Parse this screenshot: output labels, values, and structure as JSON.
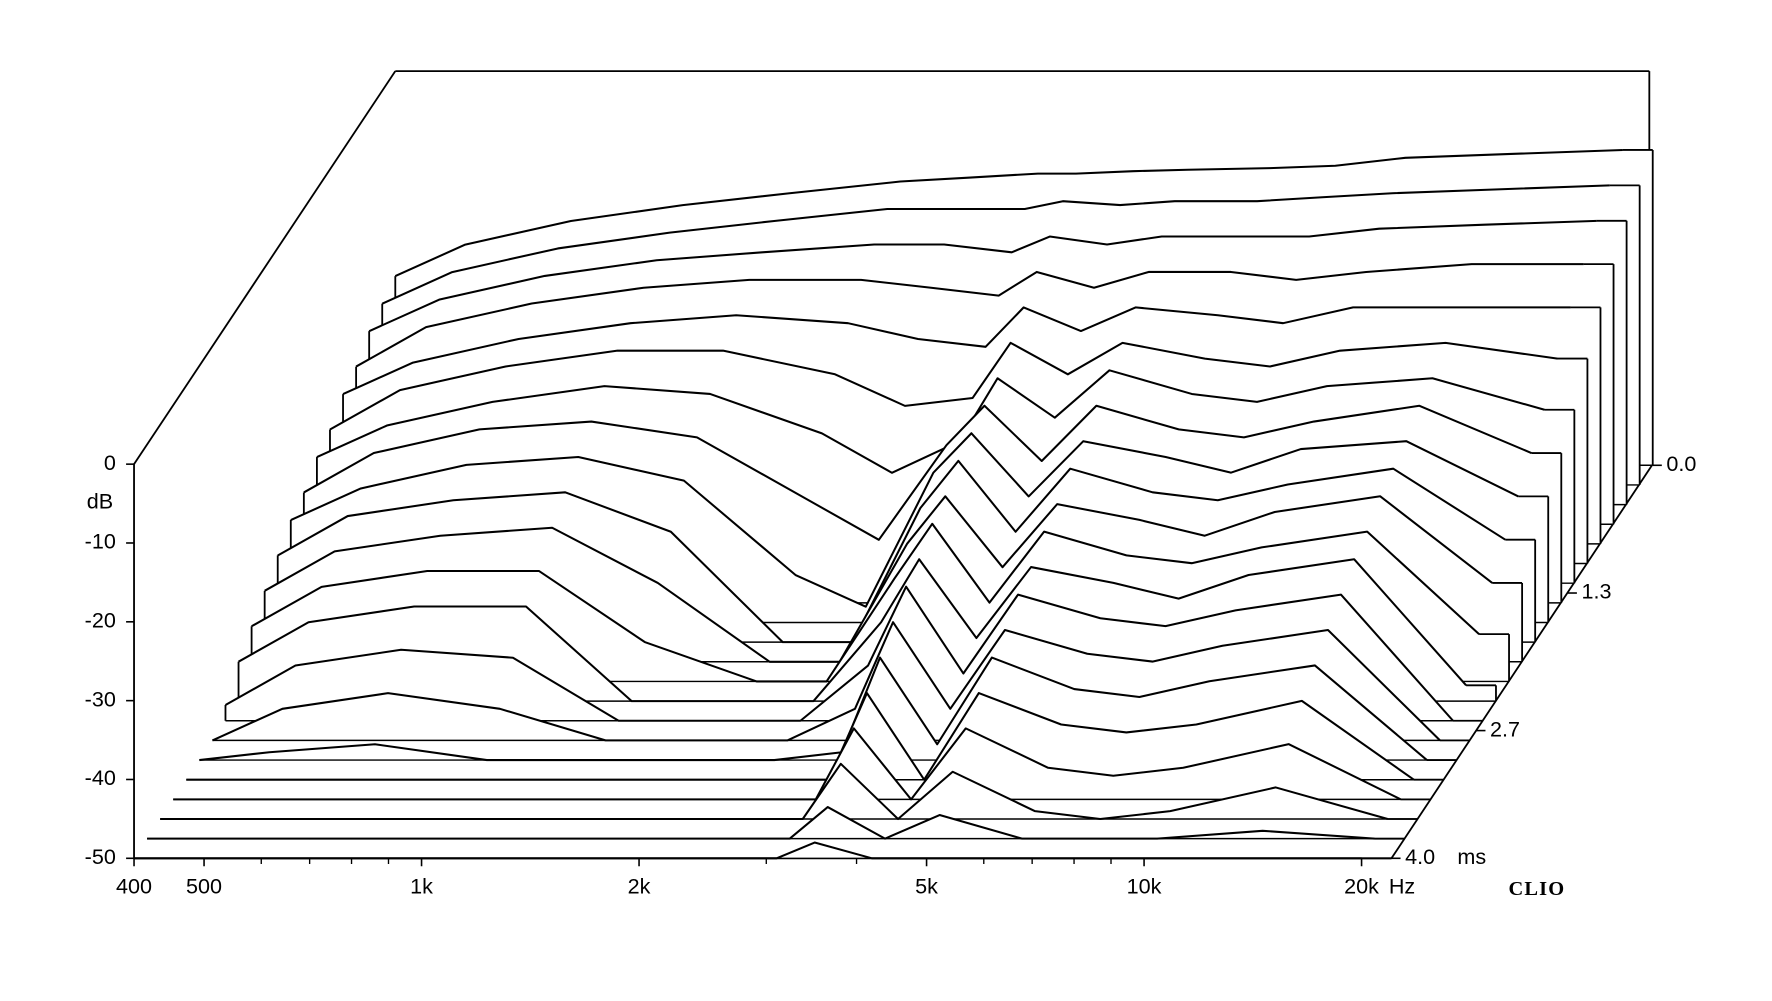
{
  "chart_data": {
    "type": "waterfall",
    "color": "#000000",
    "x": [
      400,
      500,
      700,
      1000,
      1400,
      2000,
      2500,
      3100,
      3500,
      4200,
      5000,
      6500,
      8000,
      10000,
      14000,
      20000
    ],
    "xlim": [
      400,
      22000
    ],
    "xticks": [
      400,
      500,
      {
        "value": 1000,
        "label": "1k"
      },
      {
        "value": 2000,
        "label": "2k"
      },
      {
        "value": 5000,
        "label": "5k"
      },
      {
        "value": 10000,
        "label": "10k"
      },
      {
        "value": 20000,
        "label": "20k"
      }
    ],
    "xminorticks": [
      600,
      700,
      800,
      900,
      3000,
      4000,
      6000,
      7000,
      8000,
      9000
    ],
    "xlabel": "Hz",
    "ylim": [
      -50,
      0
    ],
    "yticks": [
      0,
      -10,
      -20,
      -30,
      -40,
      -50
    ],
    "ylabel": "dB",
    "z": [
      0,
      0.2,
      0.4,
      0.6,
      0.8,
      1.0,
      1.2,
      1.4,
      1.6,
      1.8,
      2.0,
      2.2,
      2.4,
      2.6,
      2.8,
      3.0,
      3.2,
      3.4,
      3.6,
      3.8,
      4.0
    ],
    "zlim": [
      0,
      4
    ],
    "zticks": [
      {
        "value": 0,
        "label": "0.0"
      },
      1.3,
      2.7,
      {
        "value": 4,
        "label": "4.0"
      }
    ],
    "zlabel": "ms",
    "watermark": "CLIO",
    "series": [
      {
        "values": [
          -26,
          -22,
          -19,
          -17,
          -15.5,
          -14,
          -13.5,
          -13,
          -13,
          -12.7,
          -12.5,
          -12.3,
          -12,
          -11,
          -10.5,
          -10
        ]
      },
      {
        "values": [
          -27,
          -23,
          -20,
          -18,
          -16.5,
          -15,
          -15,
          -15,
          -14,
          -14.5,
          -14,
          -14,
          -13.5,
          -13,
          -12.5,
          -12
        ]
      },
      {
        "values": [
          -28,
          -24,
          -21,
          -19,
          -18,
          -17,
          -17,
          -18,
          -16,
          -17,
          -16,
          -16,
          -16,
          -15,
          -14.5,
          -14
        ]
      },
      {
        "values": [
          -30,
          -25,
          -22,
          -20,
          -19,
          -19,
          -20,
          -21,
          -18,
          -20,
          -18,
          -18,
          -19,
          -18,
          -17,
          -17
        ]
      },
      {
        "values": [
          -31,
          -27,
          -24,
          -22,
          -21,
          -22,
          -24,
          -25,
          -20,
          -23,
          -20,
          -21,
          -22,
          -20,
          -20,
          -20
        ]
      },
      {
        "values": [
          -33,
          -28,
          -25,
          -23,
          -23,
          -26,
          -30,
          -29,
          -22,
          -26,
          -22,
          -24,
          -25,
          -23,
          -22,
          -24
        ]
      },
      {
        "values": [
          -34,
          -30,
          -27,
          -25,
          -26,
          -31,
          -36,
          -32,
          -24,
          -29,
          -23,
          -26,
          -27,
          -25,
          -24,
          -28
        ]
      },
      {
        "values": [
          -36,
          -31,
          -28,
          -27,
          -29,
          -37,
          -42,
          -30,
          -25,
          -32,
          -25,
          -28,
          -29,
          -27,
          -25,
          -31
        ]
      },
      {
        "values": [
          -37,
          -33,
          -30,
          -29,
          -32,
          -44,
          -48,
          -31,
          -26,
          -34,
          -27,
          -29,
          -31,
          -28,
          -27,
          -34
        ]
      },
      {
        "values": [
          -39,
          -34,
          -32,
          -31,
          -36,
          -50,
          -50,
          -33,
          -27,
          -36,
          -28,
          -31,
          -32,
          -30,
          -28,
          -37
        ]
      },
      {
        "values": [
          -41,
          -36,
          -34,
          -33,
          -40,
          -50,
          -50,
          -35,
          -29,
          -38,
          -30,
          -32,
          -34,
          -31,
          -29,
          -40
        ]
      },
      {
        "values": [
          -43,
          -38,
          -36,
          -36,
          -45,
          -50,
          -50,
          -37,
          -30,
          -40,
          -31,
          -34,
          -35,
          -33,
          -31,
          -44
        ]
      },
      {
        "values": [
          -45,
          -40,
          -38,
          -38,
          -50,
          -50,
          -50,
          -40,
          -32,
          -42,
          -33,
          -35,
          -37,
          -34,
          -32,
          -48
        ]
      },
      {
        "values": [
          -48,
          -43,
          -41,
          -42,
          -50,
          -50,
          -50,
          -43,
          -33,
          -44,
          -34,
          -37,
          -38,
          -36,
          -34,
          -50
        ]
      },
      {
        "values": [
          -50,
          -46,
          -44,
          -46,
          -50,
          -50,
          -50,
          -46,
          -35,
          -46,
          -36,
          -39,
          -40,
          -38,
          -36,
          -50
        ]
      },
      {
        "values": [
          -50,
          -49,
          -48,
          -50,
          -50,
          -50,
          -50,
          -49,
          -37,
          -48,
          -37,
          -41,
          -42,
          -40,
          -38,
          -50
        ]
      },
      {
        "values": [
          -50,
          -50,
          -50,
          -50,
          -50,
          -50,
          -50,
          -50,
          -39,
          -50,
          -39,
          -43,
          -44,
          -43,
          -40,
          -50
        ]
      },
      {
        "values": [
          -50,
          -50,
          -50,
          -50,
          -50,
          -50,
          -50,
          -50,
          -41,
          -50,
          -41,
          -46,
          -47,
          -46,
          -43,
          -50
        ]
      },
      {
        "values": [
          -50,
          -50,
          -50,
          -50,
          -50,
          -50,
          -50,
          -50,
          -43,
          -50,
          -44,
          -49,
          -50,
          -49,
          -46,
          -50
        ]
      },
      {
        "values": [
          -50,
          -50,
          -50,
          -50,
          -50,
          -50,
          -50,
          -50,
          -46,
          -50,
          -47,
          -50,
          -50,
          -50,
          -49,
          -50
        ]
      },
      {
        "values": [
          -50,
          -50,
          -50,
          -50,
          -50,
          -50,
          -50,
          -50,
          -48,
          -50,
          -50,
          -50,
          -50,
          -50,
          -50,
          -50
        ]
      }
    ]
  }
}
